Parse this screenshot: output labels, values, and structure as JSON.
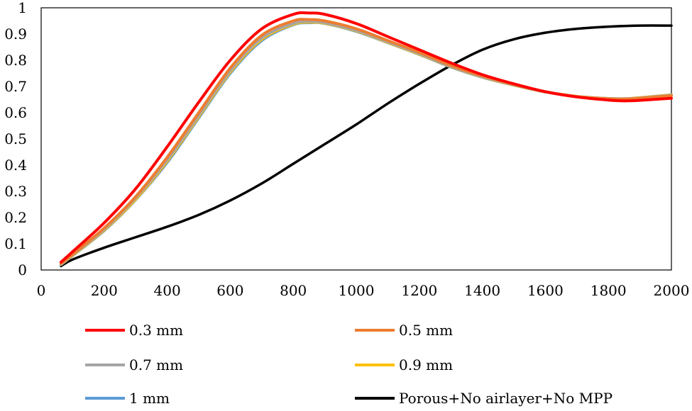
{
  "chart_data": {
    "type": "line",
    "title": "",
    "xlabel": "",
    "ylabel": "",
    "xlim": [
      0,
      2000
    ],
    "ylim": [
      0,
      1
    ],
    "x_ticks": [
      0,
      200,
      400,
      600,
      800,
      1000,
      1200,
      1400,
      1600,
      1800,
      2000
    ],
    "x_tick_labels": [
      "0",
      "200",
      "400",
      "600",
      "800",
      "1000",
      "1200",
      "1400",
      "1600",
      "1800",
      "2000"
    ],
    "y_ticks": [
      0,
      0.1,
      0.2,
      0.3,
      0.4,
      0.5,
      0.6,
      0.7,
      0.8,
      0.9,
      1
    ],
    "y_tick_labels": [
      "0",
      "0.1",
      "0.2",
      "0.3",
      "0.4",
      "0.5",
      "0.6",
      "0.7",
      "0.8",
      "0.9",
      "1"
    ],
    "grid": false,
    "legend_position": "bottom",
    "series": [
      {
        "name": "0.3 mm",
        "color": "#ff0000",
        "x": [
          63,
          100,
          200,
          300,
          400,
          500,
          600,
          700,
          800,
          850,
          900,
          1000,
          1100,
          1200,
          1300,
          1400,
          1500,
          1600,
          1700,
          1800,
          1850,
          1900,
          2000
        ],
        "y": [
          0.03,
          0.07,
          0.18,
          0.31,
          0.47,
          0.64,
          0.8,
          0.92,
          0.975,
          0.98,
          0.975,
          0.94,
          0.89,
          0.84,
          0.79,
          0.745,
          0.71,
          0.68,
          0.66,
          0.648,
          0.645,
          0.647,
          0.655
        ]
      },
      {
        "name": "0.5 mm",
        "color": "#ed7d31",
        "x": [
          63,
          100,
          200,
          300,
          400,
          500,
          600,
          700,
          800,
          850,
          900,
          1000,
          1100,
          1200,
          1300,
          1400,
          1500,
          1600,
          1700,
          1800,
          1850,
          1900,
          2000
        ],
        "y": [
          0.025,
          0.06,
          0.16,
          0.28,
          0.43,
          0.6,
          0.77,
          0.895,
          0.95,
          0.955,
          0.95,
          0.92,
          0.875,
          0.83,
          0.78,
          0.74,
          0.708,
          0.68,
          0.662,
          0.653,
          0.652,
          0.655,
          0.665
        ]
      },
      {
        "name": "0.7 mm",
        "color": "#a5a5a5",
        "x": [
          63,
          100,
          200,
          300,
          400,
          500,
          600,
          700,
          800,
          850,
          900,
          1000,
          1100,
          1200,
          1300,
          1400,
          1500,
          1600,
          1700,
          1800,
          1850,
          1900,
          2000
        ],
        "y": [
          0.023,
          0.058,
          0.155,
          0.275,
          0.42,
          0.59,
          0.76,
          0.885,
          0.94,
          0.948,
          0.943,
          0.914,
          0.87,
          0.825,
          0.776,
          0.737,
          0.706,
          0.679,
          0.662,
          0.654,
          0.653,
          0.656,
          0.667
        ]
      },
      {
        "name": "0.9 mm",
        "color": "#ffc000",
        "x": [
          63,
          100,
          200,
          300,
          400,
          500,
          600,
          700,
          800,
          850,
          900,
          1000,
          1100,
          1200,
          1300,
          1400,
          1500,
          1600,
          1700,
          1800,
          1850,
          1900,
          2000
        ],
        "y": [
          0.022,
          0.056,
          0.152,
          0.27,
          0.415,
          0.585,
          0.755,
          0.88,
          0.937,
          0.945,
          0.941,
          0.912,
          0.868,
          0.823,
          0.775,
          0.736,
          0.705,
          0.679,
          0.662,
          0.654,
          0.653,
          0.657,
          0.668
        ]
      },
      {
        "name": "1 mm",
        "color": "#5b9bd5",
        "x": [
          63,
          100,
          200,
          300,
          400,
          500,
          600,
          700,
          800,
          850,
          900,
          1000,
          1100,
          1200,
          1300,
          1400,
          1500,
          1600,
          1700,
          1800,
          1850,
          1900,
          2000
        ],
        "y": [
          0.02,
          0.055,
          0.15,
          0.268,
          0.41,
          0.58,
          0.75,
          0.875,
          0.935,
          0.943,
          0.94,
          0.91,
          0.867,
          0.822,
          0.774,
          0.735,
          0.705,
          0.679,
          0.662,
          0.654,
          0.653,
          0.657,
          0.668
        ]
      },
      {
        "name": "Porous+No airlayer+No MPP",
        "color": "#000000",
        "x": [
          63,
          100,
          200,
          300,
          400,
          500,
          600,
          700,
          800,
          900,
          1000,
          1100,
          1200,
          1300,
          1400,
          1500,
          1600,
          1700,
          1800,
          1900,
          2000
        ],
        "y": [
          0.015,
          0.04,
          0.085,
          0.125,
          0.165,
          0.21,
          0.265,
          0.33,
          0.405,
          0.48,
          0.555,
          0.635,
          0.71,
          0.78,
          0.84,
          0.88,
          0.905,
          0.92,
          0.928,
          0.932,
          0.932
        ]
      }
    ]
  }
}
